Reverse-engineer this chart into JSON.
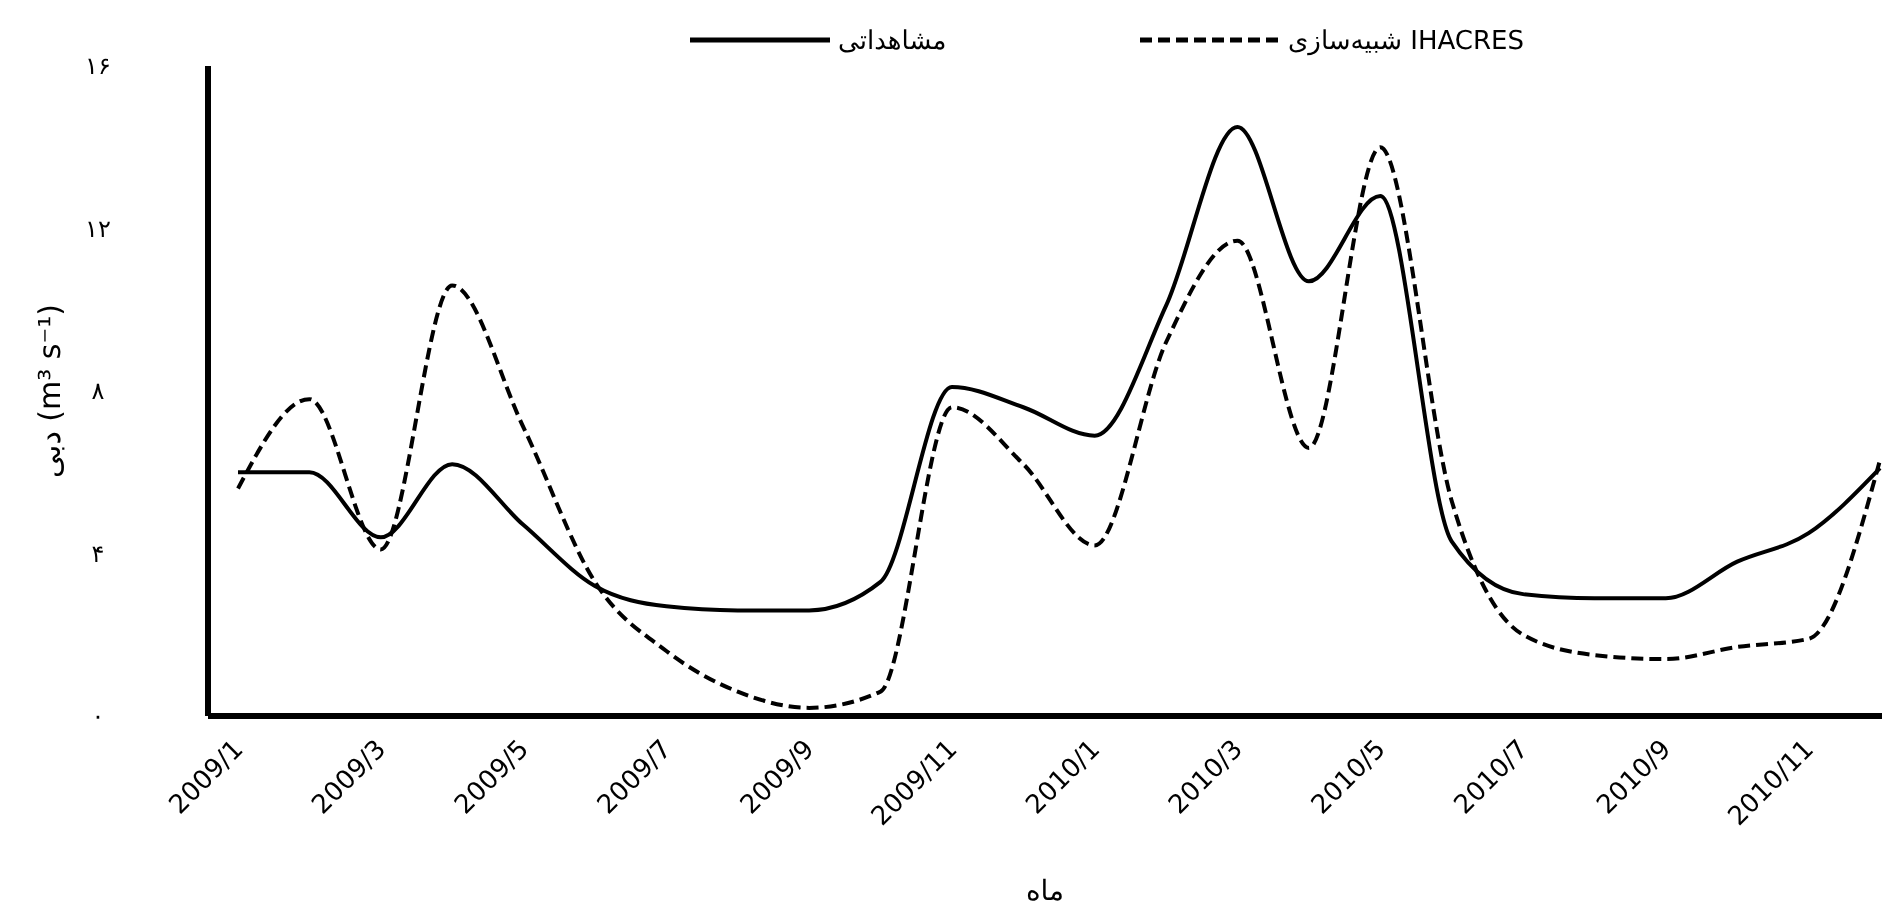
{
  "chart_data": {
    "type": "line",
    "xlabel": "ماه",
    "ylabel": "دبی (m³ s⁻¹)",
    "categories": [
      "2009/1",
      null,
      "2009/3",
      null,
      "2009/5",
      null,
      "2009/7",
      null,
      "2009/9",
      null,
      "2009/11",
      null,
      "2010/1",
      null,
      "2010/3",
      null,
      "2010/5",
      null,
      "2010/7",
      null,
      "2010/9",
      null,
      "2010/11",
      null
    ],
    "series": [
      {
        "name": "مشاهداتی",
        "color": "#000000",
        "line_style": "solid",
        "values": [
          6.0,
          6.0,
          4.4,
          6.2,
          4.7,
          3.2,
          2.7,
          2.6,
          2.6,
          3.3,
          8.1,
          7.6,
          6.9,
          10.1,
          14.5,
          10.7,
          12.8,
          4.3,
          3.0,
          2.9,
          2.9,
          3.8,
          4.5,
          6.1
        ]
      },
      {
        "name": "شبیه‌سازی IHACRES",
        "color": "#000000",
        "line_style": "dashed",
        "values": [
          5.6,
          7.8,
          4.1,
          10.6,
          7.1,
          3.3,
          1.6,
          0.6,
          0.2,
          0.6,
          7.6,
          6.2,
          4.2,
          9.2,
          11.7,
          6.6,
          14.0,
          5.3,
          2.0,
          1.5,
          1.4,
          1.7,
          1.9,
          6.3
        ]
      }
    ],
    "ylim": [
      0,
      16
    ],
    "yticks": [
      {
        "value": 0,
        "label": "۰"
      },
      {
        "value": 4,
        "label": "۴"
      },
      {
        "value": 8,
        "label": "۸"
      },
      {
        "value": 12,
        "label": "۱۲"
      },
      {
        "value": 16,
        "label": "۱۶"
      }
    ],
    "legend": "top",
    "marker": "none"
  }
}
